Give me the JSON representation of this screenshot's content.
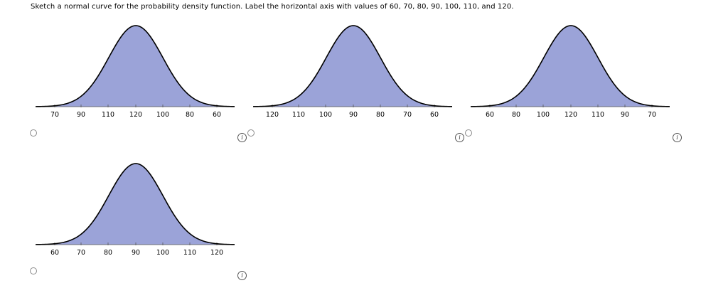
{
  "question": {
    "prompt": "Sketch a normal curve for the probability density function. Label the horizontal axis with values of 60, 70, 80, 90, 100, 110, and 120."
  },
  "colors": {
    "fill": "#9ba3d8",
    "stroke": "#000000"
  },
  "icons": {
    "radio": "radio-button-icon",
    "info": "info-icon"
  },
  "options": [
    {
      "id": "a",
      "tick_labels": [
        "70",
        "90",
        "110",
        "120",
        "100",
        "80",
        "60"
      ],
      "info_label": "i"
    },
    {
      "id": "b",
      "tick_labels": [
        "120",
        "110",
        "100",
        "90",
        "80",
        "70",
        "60"
      ],
      "info_label": "i"
    },
    {
      "id": "c",
      "tick_labels": [
        "60",
        "80",
        "100",
        "120",
        "110",
        "90",
        "70"
      ],
      "info_label": "i"
    },
    {
      "id": "d",
      "tick_labels": [
        "60",
        "70",
        "80",
        "90",
        "100",
        "110",
        "120"
      ],
      "info_label": "i"
    }
  ]
}
